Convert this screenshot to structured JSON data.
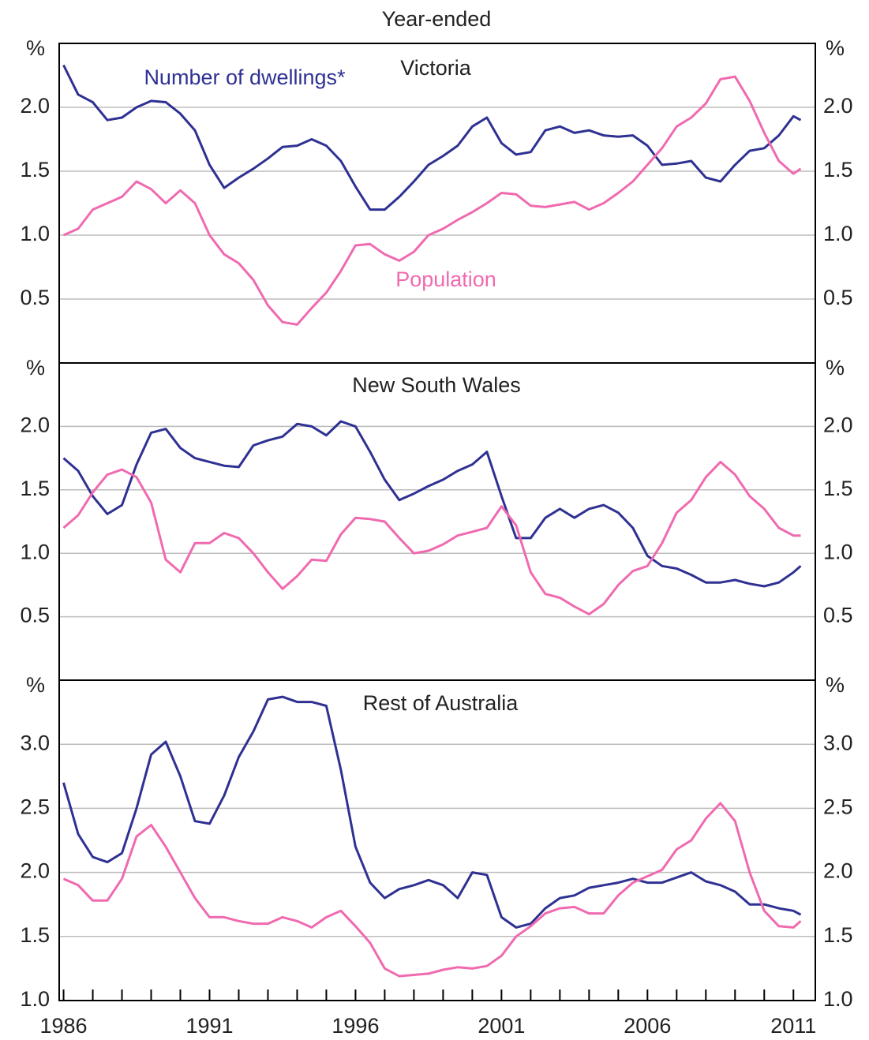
{
  "chart_data": [
    {
      "type": "line",
      "title": "Victoria",
      "subtitle": "Year-ended",
      "unit": "%",
      "x": [
        1986,
        1986.5,
        1987,
        1987.5,
        1988,
        1988.5,
        1989,
        1989.5,
        1990,
        1990.5,
        1991,
        1991.5,
        1992,
        1992.5,
        1993,
        1993.5,
        1994,
        1994.5,
        1995,
        1995.5,
        1996,
        1996.5,
        1997,
        1997.5,
        1998,
        1998.5,
        1999,
        1999.5,
        2000,
        2000.5,
        2001,
        2001.5,
        2002,
        2002.5,
        2003,
        2003.5,
        2004,
        2004.5,
        2005,
        2005.5,
        2006,
        2006.5,
        2007,
        2007.5,
        2008,
        2008.5,
        2009,
        2009.5,
        2010,
        2010.5,
        2011,
        2011.25
      ],
      "xlim": [
        1985.85,
        2011.75
      ],
      "ylim": [
        0,
        2.5
      ],
      "yticks": [
        0.5,
        {
          "value": 1,
          "label": "1.0"
        },
        1.5,
        {
          "value": 2,
          "label": "2.0"
        }
      ],
      "grid": true,
      "series": [
        {
          "name": "Number of dwellings*",
          "color": "#2e3192",
          "values": [
            2.33,
            2.1,
            2.04,
            1.9,
            1.92,
            2.0,
            2.05,
            2.04,
            1.95,
            1.82,
            1.55,
            1.37,
            1.45,
            1.52,
            1.6,
            1.69,
            1.7,
            1.75,
            1.7,
            1.58,
            1.38,
            1.2,
            1.2,
            1.3,
            1.42,
            1.55,
            1.62,
            1.7,
            1.85,
            1.92,
            1.72,
            1.63,
            1.65,
            1.82,
            1.85,
            1.8,
            1.82,
            1.78,
            1.77,
            1.78,
            1.7,
            1.55,
            1.56,
            1.58,
            1.45,
            1.42,
            1.55,
            1.66,
            1.68,
            1.78,
            1.93,
            1.9
          ]
        },
        {
          "name": "Population",
          "color": "#f06ab0",
          "values": [
            1.0,
            1.05,
            1.2,
            1.25,
            1.3,
            1.42,
            1.36,
            1.25,
            1.35,
            1.25,
            1.0,
            0.85,
            0.78,
            0.65,
            0.45,
            0.32,
            0.3,
            0.43,
            0.55,
            0.72,
            0.92,
            0.93,
            0.85,
            0.8,
            0.87,
            1.0,
            1.05,
            1.12,
            1.18,
            1.25,
            1.33,
            1.32,
            1.23,
            1.22,
            1.24,
            1.26,
            1.2,
            1.25,
            1.33,
            1.42,
            1.55,
            1.68,
            1.85,
            1.92,
            2.03,
            2.22,
            2.24,
            2.05,
            1.8,
            1.58,
            1.48,
            1.52
          ]
        }
      ]
    },
    {
      "type": "line",
      "title": "New South Wales",
      "unit": "%",
      "x": [
        1986,
        1986.5,
        1987,
        1987.5,
        1988,
        1988.5,
        1989,
        1989.5,
        1990,
        1990.5,
        1991,
        1991.5,
        1992,
        1992.5,
        1993,
        1993.5,
        1994,
        1994.5,
        1995,
        1995.5,
        1996,
        1996.5,
        1997,
        1997.5,
        1998,
        1998.5,
        1999,
        1999.5,
        2000,
        2000.5,
        2001,
        2001.5,
        2002,
        2002.5,
        2003,
        2003.5,
        2004,
        2004.5,
        2005,
        2005.5,
        2006,
        2006.5,
        2007,
        2007.5,
        2008,
        2008.5,
        2009,
        2009.5,
        2010,
        2010.5,
        2011,
        2011.25
      ],
      "xlim": [
        1985.85,
        2011.75
      ],
      "ylim": [
        0,
        2.5
      ],
      "yticks": [
        0.5,
        {
          "value": 1,
          "label": "1.0"
        },
        1.5,
        {
          "value": 2,
          "label": "2.0"
        }
      ],
      "grid": true,
      "series": [
        {
          "color": "#2e3192",
          "values": [
            1.75,
            1.65,
            1.45,
            1.31,
            1.38,
            1.7,
            1.95,
            1.98,
            1.83,
            1.75,
            1.72,
            1.69,
            1.68,
            1.85,
            1.89,
            1.92,
            2.02,
            2.0,
            1.93,
            2.04,
            2.0,
            1.8,
            1.58,
            1.42,
            1.47,
            1.53,
            1.58,
            1.65,
            1.7,
            1.8,
            1.45,
            1.12,
            1.12,
            1.28,
            1.35,
            1.28,
            1.35,
            1.38,
            1.32,
            1.2,
            0.98,
            0.9,
            0.88,
            0.83,
            0.77,
            0.77,
            0.79,
            0.76,
            0.74,
            0.77,
            0.85,
            0.9
          ]
        },
        {
          "color": "#f06ab0",
          "values": [
            1.2,
            1.3,
            1.48,
            1.62,
            1.66,
            1.6,
            1.4,
            0.95,
            0.85,
            1.08,
            1.08,
            1.16,
            1.12,
            1.0,
            0.85,
            0.72,
            0.82,
            0.95,
            0.94,
            1.15,
            1.28,
            1.27,
            1.25,
            1.12,
            1.0,
            1.02,
            1.07,
            1.14,
            1.17,
            1.2,
            1.37,
            1.22,
            0.85,
            0.68,
            0.65,
            0.58,
            0.52,
            0.6,
            0.75,
            0.86,
            0.9,
            1.08,
            1.32,
            1.42,
            1.6,
            1.72,
            1.62,
            1.45,
            1.35,
            1.2,
            1.14,
            1.14
          ]
        }
      ]
    },
    {
      "type": "line",
      "title": "Rest of Australia",
      "unit": "%",
      "x": [
        1986,
        1986.5,
        1987,
        1987.5,
        1988,
        1988.5,
        1989,
        1989.5,
        1990,
        1990.5,
        1991,
        1991.5,
        1992,
        1992.5,
        1993,
        1993.5,
        1994,
        1994.5,
        1995,
        1995.5,
        1996,
        1996.5,
        1997,
        1997.5,
        1998,
        1998.5,
        1999,
        1999.5,
        2000,
        2000.5,
        2001,
        2001.5,
        2002,
        2002.5,
        2003,
        2003.5,
        2004,
        2004.5,
        2005,
        2005.5,
        2006,
        2006.5,
        2007,
        2007.5,
        2008,
        2008.5,
        2009,
        2009.5,
        2010,
        2010.5,
        2011,
        2011.25
      ],
      "xlim": [
        1985.85,
        2011.75
      ],
      "ylim": [
        1,
        3.5
      ],
      "yticks": [
        {
          "value": 1,
          "label": "1.0"
        },
        1.5,
        {
          "value": 2,
          "label": "2.0"
        },
        2.5,
        {
          "value": 3,
          "label": "3.0"
        }
      ],
      "xticks": [
        1986,
        1991,
        1996,
        2001,
        2006,
        2011
      ],
      "xminorticks": [
        1987,
        1988,
        1989,
        1990,
        1992,
        1993,
        1994,
        1995,
        1997,
        1998,
        1999,
        2000,
        2002,
        2003,
        2004,
        2005,
        2007,
        2008,
        2009,
        2010
      ],
      "grid": true,
      "series": [
        {
          "color": "#2e3192",
          "values": [
            2.7,
            2.3,
            2.12,
            2.08,
            2.15,
            2.5,
            2.92,
            3.02,
            2.75,
            2.4,
            2.38,
            2.6,
            2.9,
            3.1,
            3.35,
            3.37,
            3.33,
            3.33,
            3.3,
            2.8,
            2.2,
            1.92,
            1.8,
            1.87,
            1.9,
            1.94,
            1.9,
            1.8,
            2.0,
            1.98,
            1.65,
            1.57,
            1.6,
            1.72,
            1.8,
            1.82,
            1.88,
            1.9,
            1.92,
            1.95,
            1.92,
            1.92,
            1.96,
            2.0,
            1.93,
            1.9,
            1.85,
            1.75,
            1.75,
            1.72,
            1.7,
            1.67
          ]
        },
        {
          "color": "#f06ab0",
          "values": [
            1.95,
            1.9,
            1.78,
            1.78,
            1.95,
            2.28,
            2.37,
            2.2,
            2.0,
            1.8,
            1.65,
            1.65,
            1.62,
            1.6,
            1.6,
            1.65,
            1.62,
            1.57,
            1.65,
            1.7,
            1.58,
            1.45,
            1.25,
            1.19,
            1.2,
            1.21,
            1.24,
            1.26,
            1.25,
            1.27,
            1.35,
            1.5,
            1.58,
            1.68,
            1.72,
            1.73,
            1.68,
            1.68,
            1.82,
            1.92,
            1.97,
            2.02,
            2.18,
            2.25,
            2.42,
            2.54,
            2.4,
            2.0,
            1.7,
            1.58,
            1.57,
            1.62
          ]
        }
      ]
    }
  ]
}
